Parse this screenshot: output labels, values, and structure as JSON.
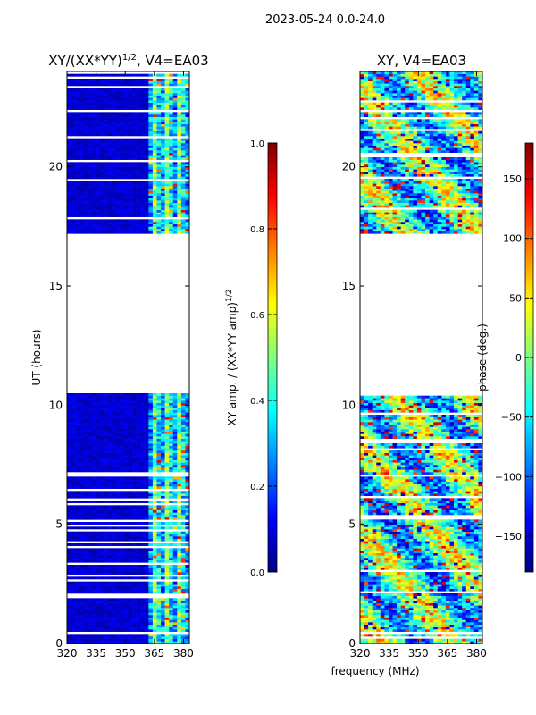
{
  "chart_data": [
    {
      "type": "heatmap",
      "suptitle": "2023-05-24 0.0-24.0",
      "title": "XY/(XX*YY)^1/2, V4=EA03",
      "title_main": "XY/(XX*YY)",
      "title_exp": "1/2",
      "title_tail": ", V4=EA03",
      "ylabel": "UT (hours)",
      "xlim": [
        320,
        383
      ],
      "ylim": [
        0,
        24
      ],
      "xticks": [
        320,
        335,
        350,
        365,
        380
      ],
      "xtick_labels": [
        "320",
        "335",
        "350",
        "365",
        "380"
      ],
      "yticks": [
        0,
        5,
        10,
        15,
        20
      ],
      "ytick_labels": [
        "0",
        "5",
        "10",
        "15",
        "20"
      ],
      "gap_hours": [
        10.4,
        17.1
      ],
      "colorbar": {
        "label_main": "XY amp. / (XX*YY amp)",
        "label_exp": "1/2",
        "range": [
          0.0,
          1.0
        ],
        "ticks": [
          0.0,
          0.2,
          0.4,
          0.6,
          0.8,
          1.0
        ],
        "tick_labels": [
          "0.0",
          "0.2",
          "0.4",
          "0.6",
          "0.8",
          "1.0"
        ]
      }
    },
    {
      "type": "heatmap",
      "title": "XY, V4=EA03",
      "xlabel": "frequency (MHz)",
      "xlim": [
        320,
        383
      ],
      "ylim": [
        0,
        24
      ],
      "xticks": [
        320,
        335,
        350,
        365,
        380
      ],
      "xtick_labels": [
        "320",
        "335",
        "350",
        "365",
        "380"
      ],
      "yticks": [
        0,
        5,
        10,
        15,
        20
      ],
      "ytick_labels": [
        "0",
        "5",
        "10",
        "15",
        "20"
      ],
      "gap_hours": [
        10.4,
        17.1
      ],
      "colorbar": {
        "label": "phase (deg.)",
        "range": [
          -180,
          180
        ],
        "ticks": [
          -150,
          -100,
          -50,
          0,
          50,
          100,
          150
        ],
        "tick_labels": [
          "−150",
          "−100",
          "−50",
          "0",
          "50",
          "100",
          "150"
        ]
      }
    }
  ]
}
